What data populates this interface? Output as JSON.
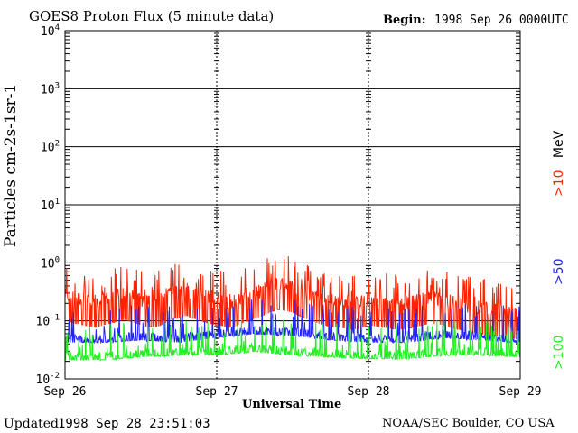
{
  "header": {
    "title": "GOES8 Proton Flux (5 minute data)",
    "begin_label": "Begin:",
    "begin_value": "1998 Sep 26 0000UTC"
  },
  "footer": {
    "updated_label": "Updated",
    "updated_value": "1998 Sep 28 23:51:03",
    "credit": "NOAA/SEC Boulder, CO USA"
  },
  "chart_data": {
    "type": "line",
    "title": "GOES8 Proton Flux (5 minute data)",
    "xlabel": "Universal Time",
    "ylabel": "Particles cm-2s-1sr-1",
    "x_ticks": [
      "Sep 26",
      "Sep 27",
      "Sep 28",
      "Sep 29"
    ],
    "x_range_days": [
      0,
      3
    ],
    "y_scale": "log",
    "y_ticks": [
      "10^-2",
      "10^-1",
      "10^0",
      "10^1",
      "10^2",
      "10^3",
      "10^4"
    ],
    "ylim": [
      0.01,
      10000
    ],
    "grid": true,
    "series": [
      {
        "name": ">10 MeV",
        "color": "#ff2200",
        "x_days": [
          0.0,
          0.1,
          0.2,
          0.3,
          0.4,
          0.5,
          0.6,
          0.7,
          0.8,
          0.9,
          1.0,
          1.1,
          1.2,
          1.3,
          1.4,
          1.5,
          1.6,
          1.7,
          1.8,
          1.9,
          2.0,
          2.1,
          2.2,
          2.3,
          2.4,
          2.5,
          2.6,
          2.7,
          2.8,
          2.9,
          3.0
        ],
        "values": [
          0.28,
          0.25,
          0.22,
          0.26,
          0.3,
          0.24,
          0.22,
          0.3,
          0.35,
          0.28,
          0.24,
          0.22,
          0.28,
          0.35,
          0.45,
          0.4,
          0.3,
          0.24,
          0.22,
          0.2,
          0.24,
          0.22,
          0.2,
          0.22,
          0.26,
          0.24,
          0.2,
          0.18,
          0.16,
          0.15,
          0.14
        ]
      },
      {
        "name": ">50",
        "color": "#2222ff",
        "x_days": [
          0.0,
          0.25,
          0.5,
          0.75,
          1.0,
          1.25,
          1.5,
          1.75,
          2.0,
          2.25,
          2.5,
          2.75,
          3.0
        ],
        "values": [
          0.05,
          0.05,
          0.055,
          0.05,
          0.06,
          0.07,
          0.065,
          0.055,
          0.05,
          0.05,
          0.06,
          0.055,
          0.05
        ]
      },
      {
        "name": ">100",
        "color": "#22ee22",
        "x_days": [
          0.0,
          0.25,
          0.5,
          0.75,
          1.0,
          1.25,
          1.5,
          1.75,
          2.0,
          2.25,
          2.5,
          2.75,
          3.0
        ],
        "values": [
          0.025,
          0.025,
          0.028,
          0.03,
          0.03,
          0.035,
          0.03,
          0.028,
          0.026,
          0.026,
          0.03,
          0.03,
          0.028
        ]
      }
    ],
    "legend": [
      {
        "label": ">10",
        "unit": "MeV",
        "color": "#ff2200"
      },
      {
        "label": ">50",
        "color": "#2222ff"
      },
      {
        "label": ">100",
        "color": "#22ee22"
      }
    ],
    "legend_placement": "right"
  }
}
